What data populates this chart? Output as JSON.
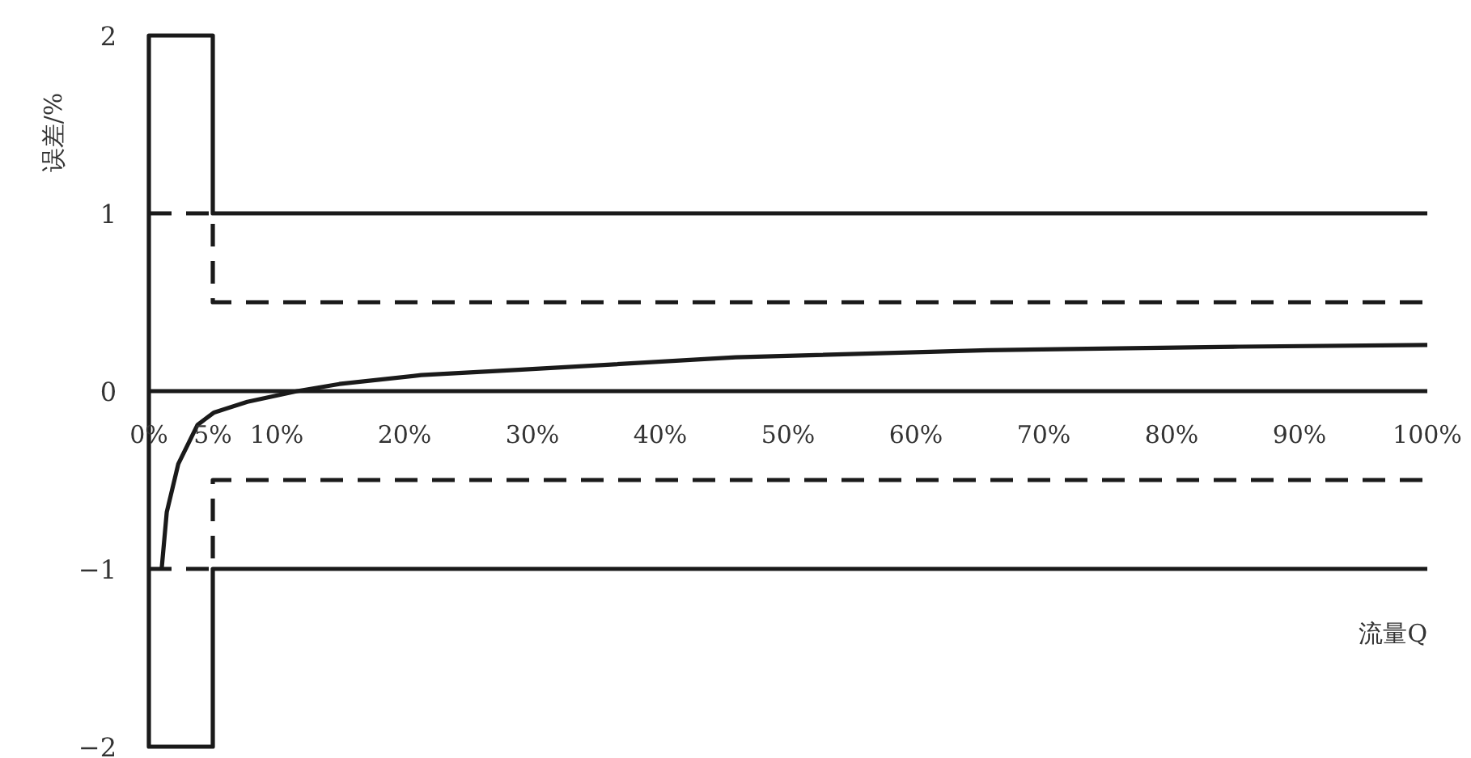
{
  "chart_data": {
    "type": "line",
    "xlabel": "流量Q",
    "ylabel": "误差/%",
    "xlim": [
      0,
      100
    ],
    "ylim": [
      -2,
      2
    ],
    "xticks": [
      {
        "value": 0,
        "label": "0%"
      },
      {
        "value": 5,
        "label": "5%"
      },
      {
        "value": 10,
        "label": "10%"
      },
      {
        "value": 20,
        "label": "20%"
      },
      {
        "value": 30,
        "label": "30%"
      },
      {
        "value": 40,
        "label": "40%"
      },
      {
        "value": 50,
        "label": "50%"
      },
      {
        "value": 60,
        "label": "60%"
      },
      {
        "value": 70,
        "label": "70%"
      },
      {
        "value": 80,
        "label": "80%"
      },
      {
        "value": 90,
        "label": "90%"
      },
      {
        "value": 100,
        "label": "100%"
      }
    ],
    "yticks": [
      -2,
      -1,
      0,
      1,
      2
    ],
    "series": [
      {
        "color": "#1a1a1a",
        "line_style": "solid",
        "x": [
          100,
          5,
          5,
          0,
          0,
          5,
          5,
          100
        ],
        "values": [
          1,
          1,
          2,
          2,
          -2,
          -2,
          -1,
          -1
        ]
      },
      {
        "color": "#1a1a1a",
        "line_style": "dashed",
        "x": [
          0,
          5,
          5,
          100
        ],
        "values": [
          1,
          1,
          0.5,
          0.5
        ]
      },
      {
        "color": "#1a1a1a",
        "line_style": "dashed",
        "x": [
          0,
          5,
          5,
          100
        ],
        "values": [
          -1,
          -1,
          -0.5,
          -0.5
        ]
      },
      {
        "color": "#1a1a1a",
        "line_style": "solid",
        "x": [
          1,
          1.4,
          2.3,
          3.8,
          5.1,
          7.7,
          11.6,
          14.9,
          21.3,
          28.9,
          45.9,
          65.6,
          85.3,
          100
        ],
        "values": [
          -1,
          -0.68,
          -0.41,
          -0.19,
          -0.12,
          -0.06,
          0,
          0.04,
          0.09,
          0.12,
          0.19,
          0.23,
          0.25,
          0.26
        ]
      }
    ]
  }
}
